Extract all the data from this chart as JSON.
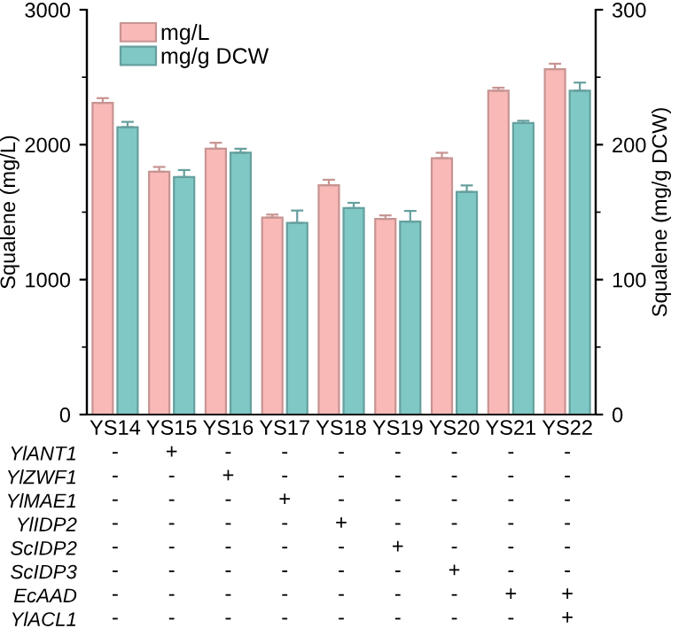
{
  "chart_data": [
    {
      "type": "bar",
      "categories": [
        "YS14",
        "YS15",
        "YS16",
        "YS17",
        "YS18",
        "YS19",
        "YS20",
        "YS21",
        "YS22"
      ],
      "ylabel": "Squalene (mg/L)",
      "y2label": "Squalene (mg/g DCW)",
      "series": [
        {
          "name": "mg/L",
          "color": "#f9b9b7",
          "values": [
            2310,
            1800,
            1970,
            1460,
            1700,
            1450,
            1900,
            2400,
            2560
          ],
          "errors": [
            35,
            35,
            44,
            22,
            40,
            26,
            40,
            22,
            40
          ]
        },
        {
          "name": "mg/g DCW",
          "color": "#7fc8c5",
          "axis": "y2",
          "values": [
            213,
            176,
            194,
            142,
            153,
            143,
            165,
            216,
            240
          ],
          "errors": [
            3.9,
            5.2,
            3,
            9.2,
            3.9,
            7.9,
            4.8,
            1.7,
            6
          ]
        }
      ],
      "ylim": [
        0,
        3000
      ],
      "yticks": [
        0,
        {
          "value": 500,
          "label": null
        },
        1000,
        {
          "value": 1500,
          "label": null
        },
        2000,
        {
          "value": 2500,
          "label": null
        },
        3000
      ],
      "y2lim": [
        0,
        300
      ],
      "y2ticks": [
        0,
        {
          "value": 50,
          "label": null
        },
        100,
        {
          "value": 150,
          "label": null
        },
        200,
        {
          "value": 250,
          "label": null
        },
        300
      ],
      "legend": "top left",
      "grid": false
    },
    {
      "type": "other",
      "y_categories": [
        "YlANT1",
        "YlZWF1",
        "YlMAE1",
        "YlIDP2",
        "ScIDP2",
        "ScIDP3",
        "EcAAD",
        "YlACL1"
      ],
      "cell_labels": [
        [
          "-",
          "+",
          "-",
          "-",
          "-",
          "-",
          "-",
          "-",
          "-"
        ],
        [
          "-",
          "-",
          "+",
          "-",
          "-",
          "-",
          "-",
          "-",
          "-"
        ],
        [
          "-",
          "-",
          "-",
          "+",
          "-",
          "-",
          "-",
          "-",
          "-"
        ],
        [
          "-",
          "-",
          "-",
          "-",
          "+",
          "-",
          "-",
          "-",
          "-"
        ],
        [
          "-",
          "-",
          "-",
          "-",
          "-",
          "+",
          "-",
          "-",
          "-"
        ],
        [
          "-",
          "-",
          "-",
          "-",
          "-",
          "-",
          "+",
          "-",
          "-"
        ],
        [
          "-",
          "-",
          "-",
          "-",
          "-",
          "-",
          "-",
          "+",
          "+"
        ],
        [
          "-",
          "-",
          "-",
          "-",
          "-",
          "-",
          "-",
          "-",
          "+"
        ]
      ]
    }
  ]
}
